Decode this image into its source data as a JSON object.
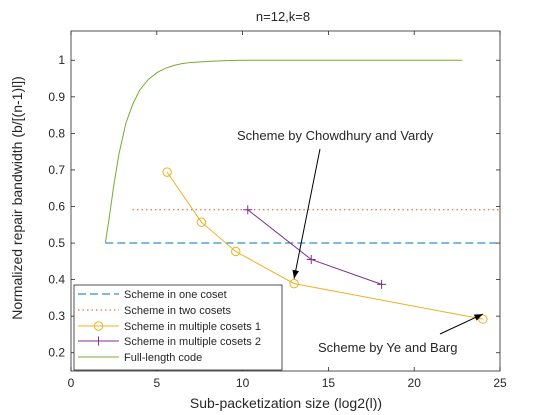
{
  "chart_data": {
    "type": "line",
    "title": "n=12,k=8",
    "xlabel": "Sub-packetization size (log2(l))",
    "ylabel": "Normalized repair bandwidth (b/[(n-1)l])",
    "xlim": [
      0,
      25
    ],
    "ylim": [
      0.15,
      1.08
    ],
    "xticks": [
      0,
      5,
      10,
      15,
      20,
      25
    ],
    "yticks": [
      0.2,
      0.3,
      0.4,
      0.5,
      0.6,
      0.7,
      0.8,
      0.9,
      1
    ],
    "grid": false,
    "legend_position": "bottom-left",
    "series": [
      {
        "name": "Scheme in one coset",
        "style": "dashed",
        "color": "#0072BD",
        "marker": "none",
        "x": [
          2,
          25
        ],
        "y": [
          0.5,
          0.5
        ]
      },
      {
        "name": "Scheme in two cosets",
        "style": "dotted",
        "color": "#D95319",
        "marker": "none",
        "x": [
          3.58,
          25
        ],
        "y": [
          0.591,
          0.591
        ]
      },
      {
        "name": "Scheme in multiple cosets 1",
        "style": "solid",
        "color": "#EDB120",
        "marker": "circle",
        "x": [
          5.6,
          7.6,
          9.6,
          13.0,
          24.0
        ],
        "y": [
          0.694,
          0.557,
          0.477,
          0.389,
          0.292
        ]
      },
      {
        "name": "Scheme in multiple cosets 2",
        "style": "solid",
        "color": "#7E2F8E",
        "marker": "plus",
        "x": [
          10.3,
          14.0,
          18.1
        ],
        "y": [
          0.591,
          0.455,
          0.387
        ]
      },
      {
        "name": "Full-length code",
        "style": "solid",
        "color": "#77AC30",
        "marker": "none",
        "x": [
          2.0,
          2.2,
          2.5,
          2.8,
          3.2,
          3.6,
          4.0,
          4.5,
          5.0,
          5.5,
          6.0,
          6.5,
          7.0,
          8.0,
          9.0,
          10.0,
          11.0,
          12.0,
          14.0,
          16.0,
          18.0,
          20.0,
          22.8
        ],
        "y": [
          0.5,
          0.56,
          0.66,
          0.745,
          0.828,
          0.88,
          0.918,
          0.947,
          0.966,
          0.978,
          0.986,
          0.991,
          0.994,
          0.997,
          0.999,
          1.0,
          1.0,
          1.0,
          1.0,
          1.0,
          1.0,
          1.0,
          1.0
        ]
      }
    ],
    "annotations": [
      {
        "text": "Scheme by Chowdhury and Vardy",
        "arrow_to": [
          13.0,
          0.389
        ]
      },
      {
        "text": "Scheme by Ye and Barg",
        "arrow_to": [
          24.0,
          0.292
        ]
      }
    ]
  }
}
